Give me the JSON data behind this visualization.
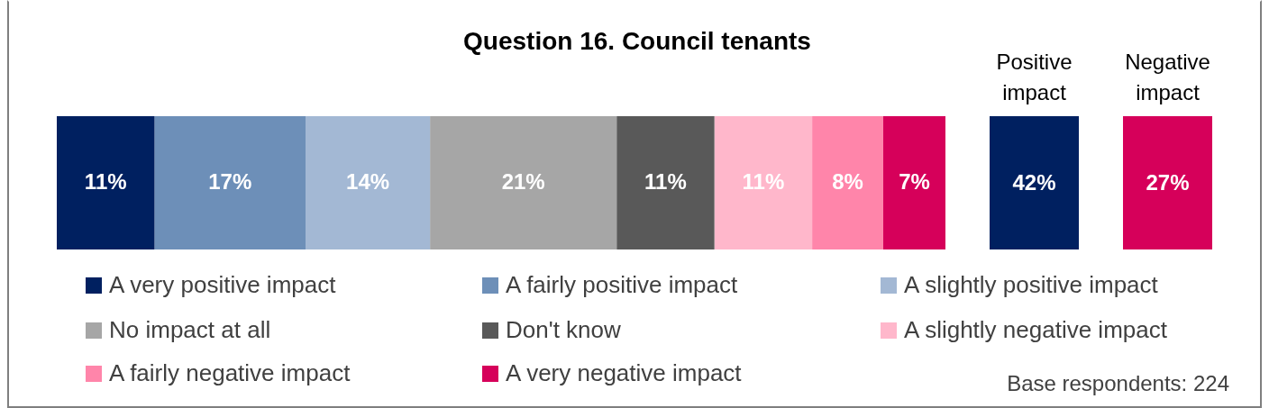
{
  "chart_data": [
    {
      "type": "bar",
      "orientation": "horizontal",
      "stacked": true,
      "title": "Question 16. Council tenants",
      "categories": [
        null
      ],
      "xlim": [
        0,
        100
      ],
      "tick_labels": false,
      "legend": "bottom",
      "series": [
        {
          "name": "A very positive impact",
          "color": "#002060",
          "values": [
            11
          ],
          "value_labels": [
            "11%"
          ]
        },
        {
          "name": "A fairly positive impact",
          "color": "#6d8fb8",
          "values": [
            17
          ],
          "value_labels": [
            "17%"
          ]
        },
        {
          "name": "A slightly positive impact",
          "color": "#a3b8d4",
          "values": [
            14
          ],
          "value_labels": [
            "14%"
          ]
        },
        {
          "name": "No impact at all",
          "color": "#a6a6a6",
          "values": [
            21
          ],
          "value_labels": [
            "21%"
          ]
        },
        {
          "name": "Don't know",
          "color": "#595959",
          "values": [
            11
          ],
          "value_labels": [
            "11%"
          ]
        },
        {
          "name": "A slightly negative impact",
          "color": "#ffb7cb",
          "values": [
            11
          ],
          "value_labels": [
            "11%"
          ]
        },
        {
          "name": "A fairly negative impact",
          "color": "#ff85aa",
          "values": [
            8
          ],
          "value_labels": [
            "8%"
          ]
        },
        {
          "name": "A very negative impact",
          "color": "#d6005a",
          "values": [
            7
          ],
          "value_labels": [
            "7%"
          ]
        }
      ],
      "annotations": [
        "Base respondents: 224"
      ]
    },
    {
      "type": "other",
      "categories": [
        "Positive impact",
        "Negative impact"
      ],
      "values": [
        42,
        27
      ],
      "value_labels": [
        "42%",
        "27%"
      ],
      "colors": [
        "#002060",
        "#d6005a"
      ]
    }
  ]
}
